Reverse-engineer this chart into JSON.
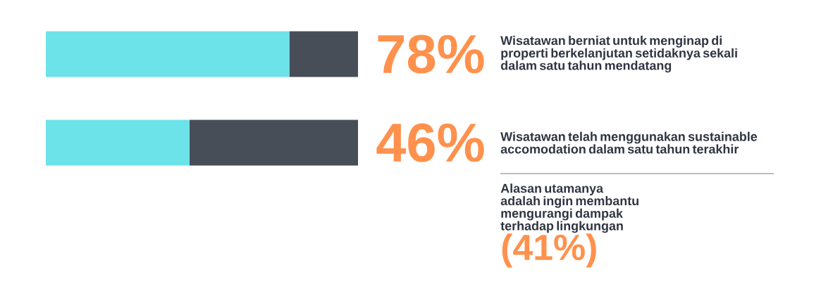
{
  "chart_data": {
    "type": "bar",
    "orientation": "horizontal",
    "stacked": true,
    "categories": [
      "Wisatawan berniat untuk menginap di properti berkelanjutan setidaknya sekali dalam satu tahun mendatang",
      "Wisatawan telah menggunakan sustainable accomodation dalam satu tahun terakhir"
    ],
    "series": [
      {
        "color": "#6ce3e8",
        "values": [
          78,
          46
        ],
        "value_labels": [
          "78%",
          "46%"
        ]
      },
      {
        "color": "#474e58",
        "values": [
          22,
          54
        ]
      }
    ],
    "xlim": [
      0,
      100
    ],
    "annotations": [
      "Alasan utamanya adalah ingin membantu mengurangi dampak terhadap lingkungan",
      "(41%)"
    ]
  }
}
